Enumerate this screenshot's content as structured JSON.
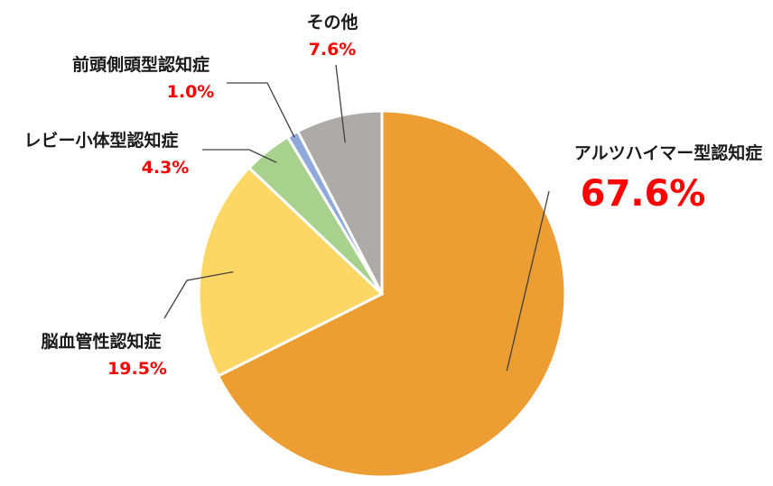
{
  "chart_data": {
    "type": "pie",
    "title": "",
    "start_angle_deg": 0,
    "direction": "clockwise",
    "slices": [
      {
        "label": "アルツハイマー型認知症",
        "value": 67.6,
        "value_label": "67.6%",
        "color": "#ED9E33"
      },
      {
        "label": "脳血管性認知症",
        "value": 19.5,
        "value_label": "19.5%",
        "color": "#FDD765"
      },
      {
        "label": "レビー小体型認知症",
        "value": 4.3,
        "value_label": "4.3%",
        "color": "#A9D18E"
      },
      {
        "label": "前頭側頭型認知症",
        "value": 1.0,
        "value_label": "1.0%",
        "color": "#8EAADB"
      },
      {
        "label": "その他",
        "value": 7.6,
        "value_label": "7.6%",
        "color": "#AEAAAA"
      }
    ]
  }
}
